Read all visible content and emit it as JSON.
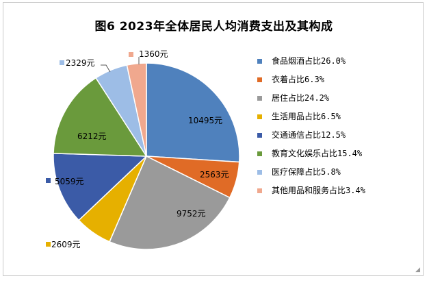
{
  "chart_data": {
    "type": "pie",
    "title": "图6  2023年全体居民人均消费支出及其构成",
    "slices": [
      {
        "legend": "食品烟酒占比26.0%",
        "value": 10495,
        "label": "10495元",
        "color": "#4f81bd"
      },
      {
        "legend": "衣着占比6.3%",
        "value": 2563,
        "label": "2563元",
        "color": "#e06b26"
      },
      {
        "legend": "居住占比24.2%",
        "value": 9752,
        "label": "9752元",
        "color": "#9a9a9a"
      },
      {
        "legend": "生活用品占比6.5%",
        "value": 2609,
        "label": "2609元",
        "color": "#e6b000"
      },
      {
        "legend": "交通通信占比12.5%",
        "value": 5059,
        "label": "5059元",
        "color": "#3b5ba7"
      },
      {
        "legend": "教育文化娱乐占比15.4%",
        "value": 6212,
        "label": "6212元",
        "color": "#6a9a3c"
      },
      {
        "legend": "医疗保障占比5.8%",
        "value": 2329,
        "label": "2329元",
        "color": "#9dbde6"
      },
      {
        "legend": "其他用品和服务占比3.4%",
        "value": 1360,
        "label": "1360元",
        "color": "#f0a88e"
      }
    ],
    "legend_position": "right"
  }
}
